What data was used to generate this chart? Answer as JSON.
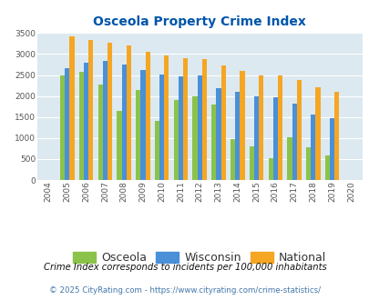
{
  "title": "Osceola Property Crime Index",
  "years": [
    2004,
    2005,
    2006,
    2007,
    2008,
    2009,
    2010,
    2011,
    2012,
    2013,
    2014,
    2015,
    2016,
    2017,
    2018,
    2019,
    2020
  ],
  "osceola": [
    0,
    2500,
    2580,
    2280,
    1640,
    2140,
    1400,
    1900,
    2000,
    1800,
    970,
    800,
    530,
    1010,
    780,
    590,
    0
  ],
  "wisconsin": [
    0,
    2670,
    2800,
    2830,
    2750,
    2620,
    2520,
    2470,
    2490,
    2190,
    2100,
    2000,
    1960,
    1810,
    1560,
    1470,
    0
  ],
  "national": [
    0,
    3420,
    3340,
    3270,
    3210,
    3060,
    2960,
    2910,
    2870,
    2730,
    2600,
    2500,
    2490,
    2380,
    2210,
    2110,
    0
  ],
  "osceola_color": "#8bc34a",
  "wisconsin_color": "#4a90d9",
  "national_color": "#f5a623",
  "bg_color": "#dce9f0",
  "title_color": "#0055aa",
  "ylim": [
    0,
    3500
  ],
  "yticks": [
    0,
    500,
    1000,
    1500,
    2000,
    2500,
    3000,
    3500
  ],
  "footnote1": "Crime Index corresponds to incidents per 100,000 inhabitants",
  "footnote2": "© 2025 CityRating.com - https://www.cityrating.com/crime-statistics/",
  "legend_labels": [
    "Osceola",
    "Wisconsin",
    "National"
  ],
  "bar_width": 0.25
}
